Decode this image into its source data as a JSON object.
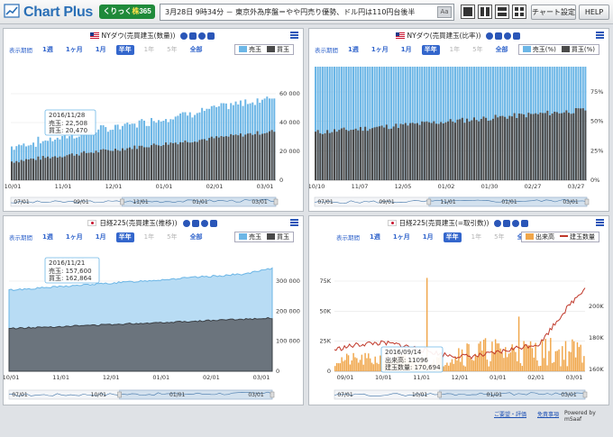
{
  "app": {
    "title": "Chart Plus",
    "badge_pre": "くりっく",
    "badge_mid": "株",
    "badge_post": "365"
  },
  "ticker": {
    "text": "3月28日 9時34分 － 東京外為序盤＝やや円売り優勢、ドル円は110円台後半",
    "button": "Aa"
  },
  "toolbar": {
    "chart_settings": "チャート設定",
    "help": "HELP"
  },
  "colors": {
    "sell": "#6cb6e6",
    "sell_fill": "#b8dcf4",
    "buy": "#4a4a4a",
    "buy_fill": "#6b747d",
    "volume": "#f0a64a",
    "margin": "#c0392b",
    "accent": "#3366cc"
  },
  "ranges": {
    "label": "表示期間",
    "items": [
      "1週",
      "1ヶ月",
      "1月",
      "半年",
      "1年",
      "5年",
      "全部"
    ]
  },
  "ranges_right": {
    "label": "表示期間",
    "items": [
      "1週",
      "1ヶ月",
      "1月",
      "半年",
      "1年",
      "5年",
      "全部"
    ]
  },
  "panels": [
    {
      "title": "NYダウ(売買建玉(数量))",
      "legend": [
        "売玉",
        "買玉"
      ],
      "x_labels": [
        "10/01",
        "11/01",
        "12/01",
        "01/01",
        "02/01",
        "03/01"
      ],
      "nav_labels": [
        "07/01",
        "09/01",
        "11/01",
        "01/01",
        "03/01"
      ],
      "y_labels": [
        "60 000",
        "40 000",
        "20 000",
        "0"
      ],
      "tooltip": {
        "date": "2016/11/28",
        "sell": "売玉: 22,508",
        "buy": "買玉: 20,470"
      }
    },
    {
      "title": "NYダウ(売買建玉(比率))",
      "legend": [
        "売玉(%)",
        "買玉(%)"
      ],
      "x_labels": [
        "10/10",
        "11/07",
        "12/05",
        "01/02",
        "01/30",
        "02/27",
        "03/27"
      ],
      "nav_labels": [
        "07/01",
        "09/01",
        "11/01",
        "01/01",
        "03/01"
      ],
      "y_labels": [
        "75%",
        "50%",
        "25%",
        "0%"
      ]
    },
    {
      "title": "日経225(売買建玉(推移))",
      "legend": [
        "売玉",
        "買玉"
      ],
      "x_labels": [
        "10/01",
        "11/01",
        "12/01",
        "01/01",
        "02/01",
        "03/01"
      ],
      "nav_labels": [
        "07/01",
        "10/01",
        "01/01",
        "03/01"
      ],
      "y_labels": [
        "300 000",
        "200 000",
        "100 000",
        "0"
      ],
      "tooltip": {
        "date": "2016/11/21",
        "sell": "売玉: 157,600",
        "buy": "買玉: 162,864"
      }
    },
    {
      "title": "日経225(売買建玉(=取引数))",
      "legend": [
        "出来高",
        "建玉数量"
      ],
      "x_labels": [
        "09/01",
        "10/01",
        "11/01",
        "12/01",
        "01/01",
        "02/01",
        "03/01"
      ],
      "nav_labels": [
        "07/01",
        "10/01",
        "01/01",
        "03/01"
      ],
      "y_labels_left": [
        "75K",
        "50K",
        "25K",
        "0"
      ],
      "y_labels_right": [
        "200K",
        "180K",
        "160K"
      ],
      "tooltip": {
        "date": "2016/09/14",
        "sell": "出来高: 11096",
        "buy": "建玉数量: 170,694"
      }
    }
  ],
  "footer": {
    "link1": "ご要望・評価",
    "link2": "免責事項",
    "credit": "Powered by mSaaf"
  }
}
